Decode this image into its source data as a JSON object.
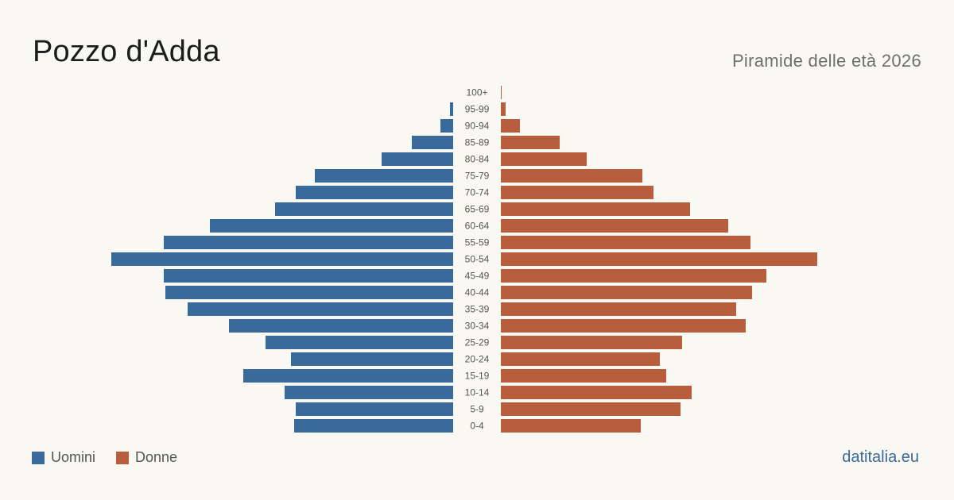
{
  "header": {
    "title": "Pozzo d'Adda",
    "subtitle": "Piramide delle età 2026"
  },
  "legend": {
    "men_label": "Uomini",
    "women_label": "Donne"
  },
  "brand": "datitalia.eu",
  "colors": {
    "men": "#3a6a9c",
    "women": "#b95e3c",
    "background": "#faf8f3"
  },
  "chart_data": {
    "type": "bar",
    "orientation": "horizontal-pyramid",
    "title": "",
    "xlabel": "",
    "ylabel": "",
    "categories": [
      "100+",
      "95-99",
      "90-94",
      "85-89",
      "80-84",
      "75-79",
      "70-74",
      "65-69",
      "60-64",
      "55-59",
      "50-54",
      "45-49",
      "40-44",
      "35-39",
      "30-34",
      "25-29",
      "20-24",
      "15-19",
      "10-14",
      "5-9",
      "0-4"
    ],
    "series": [
      {
        "name": "Uomini",
        "values": [
          0,
          2,
          8,
          26,
          45,
          87,
          99,
          112,
          153,
          182,
          215,
          182,
          181,
          167,
          141,
          118,
          102,
          132,
          106,
          99,
          100
        ]
      },
      {
        "name": "Donne",
        "values": [
          0.5,
          3,
          12,
          37,
          54,
          89,
          96,
          119,
          143,
          157,
          199,
          167,
          158,
          148,
          154,
          114,
          100,
          104,
          120,
          113,
          88
        ]
      }
    ],
    "xlim": [
      0,
      215
    ],
    "grid": false,
    "legend_position": "bottom-left"
  }
}
